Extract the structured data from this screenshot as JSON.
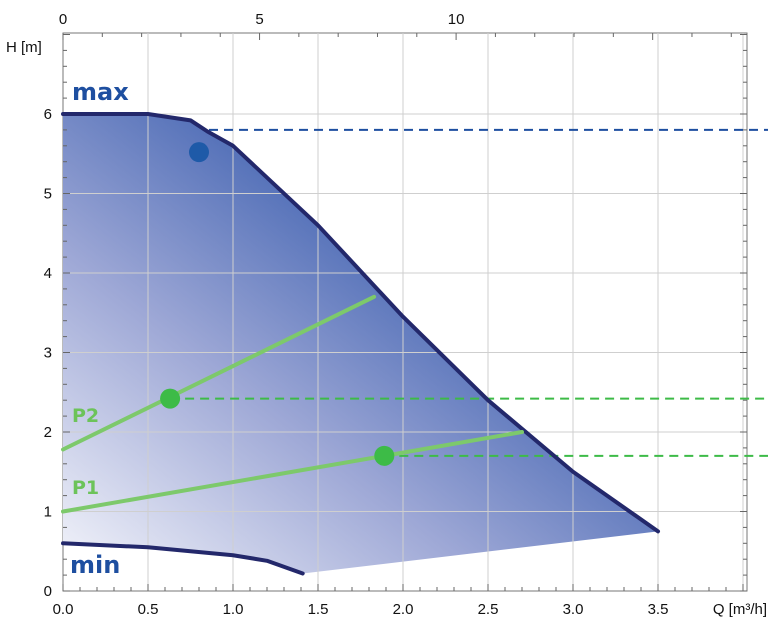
{
  "chart_data": {
    "type": "line",
    "title": "",
    "xlabel": "Q [m³/h]",
    "ylabel": "H [m]",
    "xlim": [
      0,
      4.0
    ],
    "ylim": [
      0,
      7.0
    ],
    "x_ticks": [
      "0.0",
      "0.5",
      "1.0",
      "1.5",
      "2.0",
      "2.5",
      "3.0",
      "3.5"
    ],
    "y_ticks": [
      "0",
      "1",
      "2",
      "3",
      "4",
      "5",
      "6"
    ],
    "top_axis": {
      "ticks": [
        "0",
        "5",
        "10"
      ],
      "values": [
        0,
        5,
        10
      ],
      "max": 17.4
    },
    "grid": true,
    "series": [
      {
        "name": "max",
        "color": "#1e4fa0",
        "x": [
          0,
          0.5,
          0.75,
          0.85,
          1.0,
          1.5,
          2.0,
          2.5,
          3.0,
          3.5
        ],
        "y": [
          6.0,
          6.0,
          5.92,
          5.78,
          5.6,
          4.6,
          3.45,
          2.4,
          1.5,
          0.75
        ]
      },
      {
        "name": "min",
        "color": "#1e4fa0",
        "x": [
          0,
          0.5,
          1.0,
          1.2,
          1.41
        ],
        "y": [
          0.6,
          0.55,
          0.45,
          0.38,
          0.22
        ]
      },
      {
        "name": "P2",
        "color": "#7dc96b",
        "x": [
          0,
          1.83
        ],
        "y": [
          1.78,
          3.7
        ]
      },
      {
        "name": "P1",
        "color": "#7dc96b",
        "x": [
          0,
          2.7
        ],
        "y": [
          1.0,
          2.0
        ]
      }
    ],
    "operating_points": [
      {
        "x": 0.8,
        "y": 5.52,
        "color": "#1e5aa8",
        "ref_y": 5.8,
        "ref_color": "#1e4fa0"
      },
      {
        "x": 0.63,
        "y": 2.42,
        "color": "#3dbb47",
        "ref_y": 2.42,
        "ref_color": "#3dbb47"
      },
      {
        "x": 1.89,
        "y": 1.7,
        "color": "#3dbb47",
        "ref_y": 1.7,
        "ref_color": "#3dbb47"
      }
    ],
    "labels": [
      {
        "text": "max",
        "color": "#1e4fa0"
      },
      {
        "text": "min",
        "color": "#1e4fa0"
      },
      {
        "text": "P2",
        "color": "#6cc35a"
      },
      {
        "text": "P1",
        "color": "#6cc35a"
      }
    ]
  }
}
